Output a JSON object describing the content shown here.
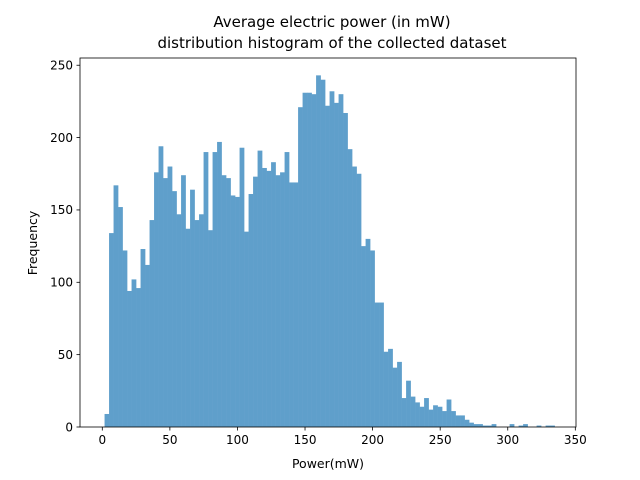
{
  "chart_data": {
    "type": "bar",
    "title": [
      "Average electric power (in mW)",
      "distribution histogram of the collected dataset"
    ],
    "xlabel": "Power(mW)",
    "ylabel": "Frequency",
    "xlim": [
      -16.5,
      350.5
    ],
    "ylim": [
      0,
      255
    ],
    "xticks": [
      0,
      50,
      100,
      150,
      200,
      250,
      300,
      350
    ],
    "yticks": [
      0,
      50,
      100,
      150,
      200,
      250
    ],
    "bar_color": "#5f9fcb",
    "bin_start": 1.67,
    "bin_width": 3.33,
    "values": [
      9,
      134,
      167,
      152,
      122,
      94,
      102,
      96,
      123,
      112,
      143,
      176,
      194,
      172,
      180,
      163,
      147,
      174,
      137,
      164,
      143,
      147,
      190,
      136,
      190,
      197,
      174,
      172,
      160,
      159,
      193,
      135,
      161,
      173,
      191,
      179,
      177,
      183,
      174,
      176,
      190,
      169,
      169,
      221,
      231,
      231,
      230,
      243,
      240,
      222,
      232,
      224,
      230,
      217,
      192,
      180,
      175,
      125,
      130,
      122,
      86,
      86,
      52,
      54,
      41,
      45,
      20,
      32,
      21,
      17,
      14,
      20,
      12,
      15,
      14,
      11,
      19,
      11,
      8,
      8,
      5,
      3,
      2,
      2,
      1,
      1,
      2,
      0,
      0,
      0,
      2,
      0,
      1,
      2,
      0,
      0,
      1,
      0,
      1,
      1
    ]
  }
}
